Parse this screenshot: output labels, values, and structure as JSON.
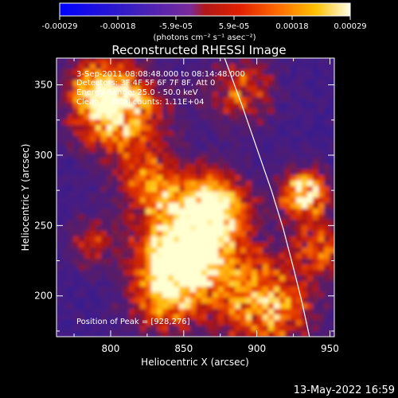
{
  "colorbar": {
    "ticks": [
      "-0.00029",
      "-0.00018",
      "-5.9e-05",
      "5.9e-05",
      "0.00018",
      "0.00029"
    ],
    "unit_label": "(photons cm⁻² s⁻¹ asec⁻²)",
    "range": [
      -0.00029,
      0.00029
    ]
  },
  "plot": {
    "title": "Reconstructed RHESSI Image",
    "annotations": [
      "3-Sep-2011 08:08:48.000 to 08:14:48.000",
      "Detectors: 3F 4F 5F 6F 7F 8F, Att 0",
      "Energy Range: 25.0 - 50.0 keV",
      "Clean     Total counts: 1.11E+04"
    ],
    "peak_label": "Position of Peak = [928,276]"
  },
  "footer": {
    "timestamp": "13-May-2022 16:59"
  },
  "chart_data": {
    "type": "heatmap",
    "title": "Reconstructed RHESSI Image",
    "xlabel": "Heliocentric X (arcsec)",
    "ylabel": "Heliocentric Y (arcsec)",
    "xlim": [
      763,
      953
    ],
    "ylim": [
      171,
      369
    ],
    "x_ticks": [
      800,
      850,
      900,
      950
    ],
    "y_ticks": [
      200,
      250,
      300,
      350
    ],
    "x_tick_labels": [
      "800",
      "850",
      "900",
      "950"
    ],
    "y_tick_labels": [
      "200",
      "250",
      "300",
      "350"
    ],
    "colormap": "rhessi (blue-purple-red-orange-yellow-white)",
    "peak": [
      928,
      276
    ],
    "limb_curve": {
      "x": [
        878,
        890,
        900,
        910,
        918,
        925,
        931,
        936
      ],
      "y": [
        369,
        335,
        305,
        275,
        248,
        220,
        195,
        171
      ]
    }
  }
}
